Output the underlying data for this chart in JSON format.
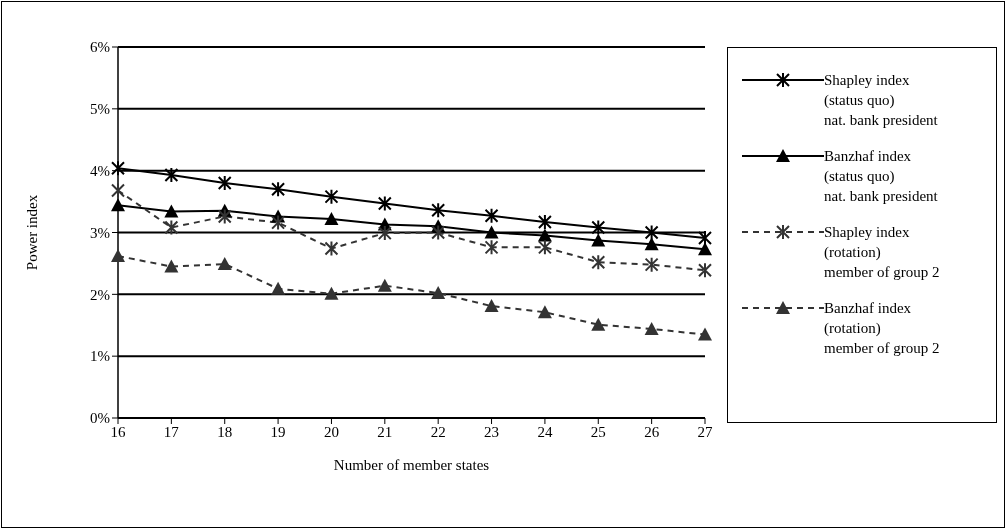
{
  "chart_data": {
    "type": "line",
    "xlabel": "Number of member states",
    "ylabel": "Power index",
    "categories": [
      "16",
      "17",
      "18",
      "19",
      "20",
      "21",
      "22",
      "23",
      "24",
      "25",
      "26",
      "27"
    ],
    "series": [
      {
        "name": "Shapley index\n(status quo)\nnat. bank president",
        "color": "#000000",
        "marker": "cross",
        "line_style": "solid",
        "values": [
          4.04,
          3.93,
          3.8,
          3.7,
          3.58,
          3.47,
          3.36,
          3.27,
          3.17,
          3.08,
          3.0,
          2.91
        ]
      },
      {
        "name": "Banzhaf index\n(status quo)\nnat. bank president",
        "color": "#000000",
        "marker": "triangle",
        "line_style": "solid",
        "values": [
          3.44,
          3.34,
          3.35,
          3.26,
          3.22,
          3.13,
          3.1,
          3.0,
          2.95,
          2.87,
          2.81,
          2.73
        ]
      },
      {
        "name": "Shapley index\n(rotation)\nmember of group 2",
        "color": "#333333",
        "marker": "cross",
        "line_style": "dashed",
        "values": [
          3.68,
          3.08,
          3.26,
          3.16,
          2.74,
          2.99,
          3.0,
          2.76,
          2.76,
          2.52,
          2.48,
          2.39
        ]
      },
      {
        "name": "Banzhaf index\n(rotation)\nmember of group 2",
        "color": "#333333",
        "marker": "triangle",
        "line_style": "dashed",
        "values": [
          2.62,
          2.45,
          2.49,
          2.09,
          2.01,
          2.14,
          2.02,
          1.81,
          1.71,
          1.51,
          1.44,
          1.35
        ]
      }
    ],
    "ylim": [
      0,
      6
    ],
    "yticks": [
      {
        "value": 0,
        "label": "0%"
      },
      {
        "value": 1,
        "label": "1%"
      },
      {
        "value": 2,
        "label": "2%"
      },
      {
        "value": 3,
        "label": "3%"
      },
      {
        "value": 4,
        "label": "4%"
      },
      {
        "value": 5,
        "label": "5%"
      },
      {
        "value": 6,
        "label": "6%"
      }
    ],
    "grid": "y",
    "legend": "right"
  }
}
